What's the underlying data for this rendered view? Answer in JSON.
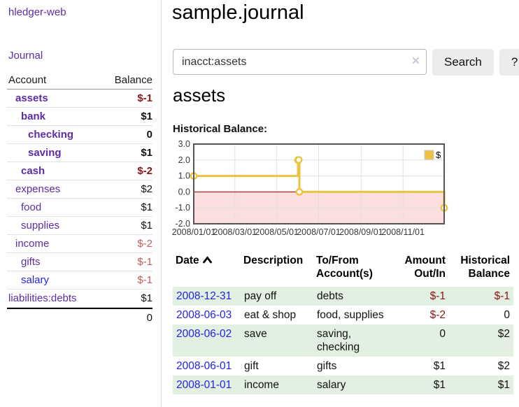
{
  "app_title": "hledger-web",
  "sidebar": {
    "journal_link": "Journal",
    "headers": {
      "account": "Account",
      "balance": "Balance"
    },
    "accounts": [
      {
        "name": "assets",
        "balance": "$-1"
      },
      {
        "name": "bank",
        "balance": "$1"
      },
      {
        "name": "checking",
        "balance": "0"
      },
      {
        "name": "saving",
        "balance": "$1"
      },
      {
        "name": "cash",
        "balance": "$-2"
      },
      {
        "name": "expenses",
        "balance": "$2"
      },
      {
        "name": "food",
        "balance": "$1"
      },
      {
        "name": "supplies",
        "balance": "$1"
      },
      {
        "name": "income",
        "balance": "$-2"
      },
      {
        "name": "gifts",
        "balance": "$-1"
      },
      {
        "name": "salary",
        "balance": "$-1"
      },
      {
        "name": "liabilities:debts",
        "balance": "$1"
      }
    ],
    "total": "0"
  },
  "header": {
    "title": "sample.journal"
  },
  "search": {
    "value": "inacct:assets",
    "clear_icon": "×",
    "button": "Search",
    "help_button": "?"
  },
  "account_page": {
    "heading": "assets",
    "chart_label": "Historical Balance:"
  },
  "chart_data": {
    "type": "line",
    "title": "Historical Balance",
    "series": [
      {
        "name": "$",
        "color": "#edc240",
        "step": true,
        "points": [
          [
            "2008-01-01",
            1
          ],
          [
            "2008-06-01",
            2
          ],
          [
            "2008-06-02",
            2
          ],
          [
            "2008-06-03",
            0
          ],
          [
            "2008-12-31",
            -1
          ]
        ]
      }
    ],
    "ylim": [
      -2,
      3
    ],
    "yticks": [
      3,
      2,
      1,
      0,
      -1,
      -2
    ],
    "xticks": [
      "2008/01/01",
      "2008/03/01",
      "2008/05/01",
      "2008/07/01",
      "2008/09/01",
      "2008/11/01"
    ],
    "xrange": [
      "2008-01-01",
      "2008-12-31"
    ],
    "grid": true,
    "legend_position": "top-right",
    "negative_fill": "#fbdede",
    "zero_line_color": "#a83232"
  },
  "register": {
    "columns": {
      "date": "Date",
      "sort_icon": "chevron-up",
      "description": "Description",
      "tofrom": "To/From Account(s)",
      "amount": "Amount Out/In",
      "balance": "Historical Balance"
    },
    "rows": [
      {
        "date": "2008-12-31",
        "description": "pay off",
        "accounts": "debts",
        "amount": "$-1",
        "balance": "$-1"
      },
      {
        "date": "2008-06-03",
        "description": "eat & shop",
        "accounts": "food, supplies",
        "amount": "$-2",
        "balance": "0"
      },
      {
        "date": "2008-06-02",
        "description": "save",
        "accounts": "saving, checking",
        "amount": "0",
        "balance": "$2"
      },
      {
        "date": "2008-06-01",
        "description": "gift",
        "accounts": "gifts",
        "amount": "$1",
        "balance": "$2"
      },
      {
        "date": "2008-01-01",
        "description": "income",
        "accounts": "salary",
        "amount": "$1",
        "balance": "$1"
      }
    ]
  },
  "colors": {
    "link_purple": "#5c2ca6",
    "link_blue": "#2323e6",
    "negative_strong": "#8c1616",
    "negative_soft": "#c25e5e",
    "row_highlight_green": "#e2f0e2",
    "chart_series_yellow": "#edc240",
    "chart_negative_region_pink": "#fbdede",
    "chart_zero_line_red": "#a83232"
  }
}
